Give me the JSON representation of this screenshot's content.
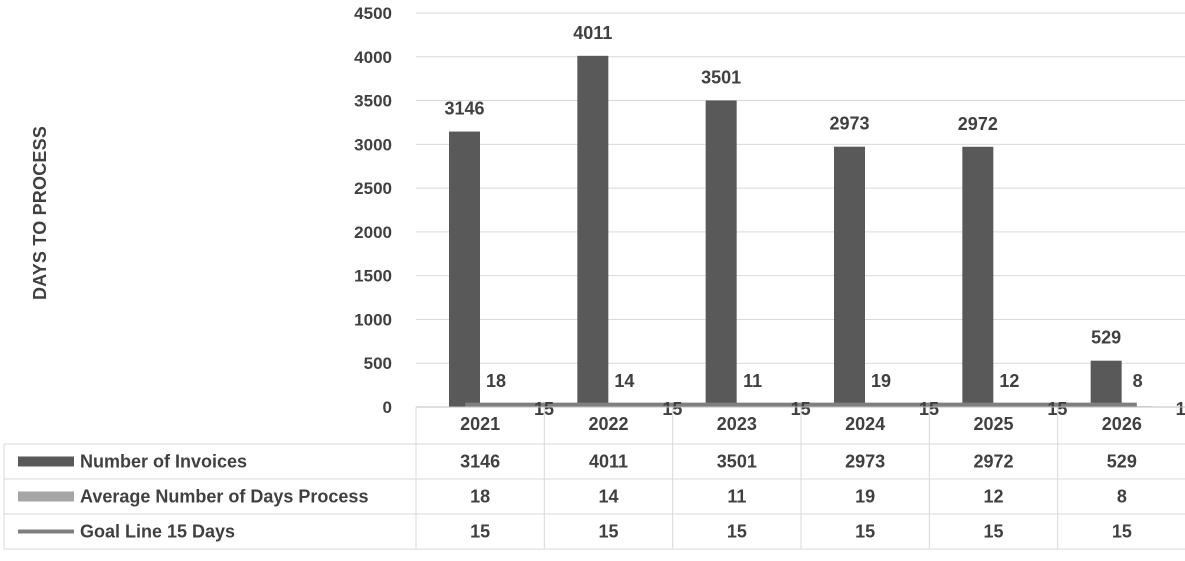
{
  "chart_data": {
    "type": "bar",
    "ylabel": "DAYS TO PROCESS",
    "ylim": [
      0,
      4500
    ],
    "yticks": [
      "0",
      "500",
      "1000",
      "1500",
      "2000",
      "2500",
      "3000",
      "3500",
      "4000",
      "4500"
    ],
    "grid": true,
    "legend": "data-table-below",
    "categories": [
      "2021",
      "2022",
      "2023",
      "2024",
      "2025",
      "2026"
    ],
    "series": [
      {
        "name": "Number of Invoices",
        "kind": "bar",
        "color": "#595959",
        "values": [
          3146,
          4011,
          3501,
          2973,
          2972,
          529
        ]
      },
      {
        "name": "Average Number of Days Process",
        "kind": "bar",
        "color": "#a6a6a6",
        "values": [
          18,
          14,
          11,
          19,
          12,
          8
        ]
      },
      {
        "name": "Goal Line 15 Days",
        "kind": "line",
        "color": "#7f7f7f",
        "values": [
          15,
          15,
          15,
          15,
          15,
          15
        ]
      }
    ]
  }
}
